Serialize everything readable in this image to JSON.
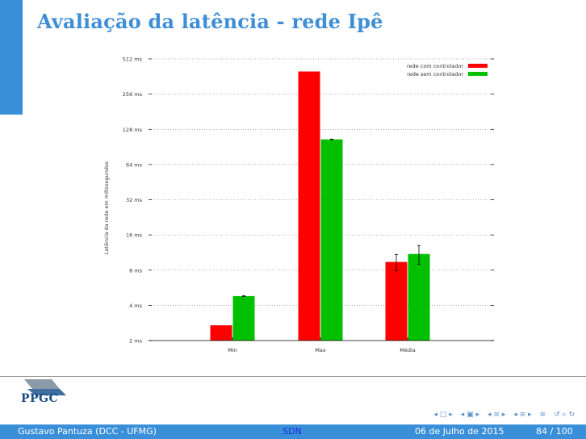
{
  "slide": {
    "title": "Avaliação da latência - rede Ipê"
  },
  "chart_data": {
    "type": "bar",
    "title": "",
    "xlabel": "",
    "ylabel": "Latência da rede em milissegundos",
    "y_scale": "log2",
    "ylim": [
      2,
      512
    ],
    "yticks": [
      2,
      4,
      8,
      16,
      32,
      64,
      128,
      256,
      512
    ],
    "yticklabels": [
      "2 ms",
      "4 ms",
      "8 ms",
      "16 ms",
      "32 ms",
      "64 ms",
      "128 ms",
      "256 ms",
      "512 ms"
    ],
    "categories": [
      "Min",
      "Max",
      "Média"
    ],
    "grid": "horizontal dotted",
    "legend_position": "top-right",
    "series": [
      {
        "name": "rede com controlador",
        "color": "#ff0000",
        "values": [
          2.7,
          400,
          9.4
        ],
        "error": [
          0,
          0,
          1.5
        ]
      },
      {
        "name": "rede sem controlador",
        "color": "#00c000",
        "values": [
          4.8,
          105,
          11
        ],
        "error": [
          0.05,
          0.6,
          2
        ]
      }
    ]
  },
  "footer": {
    "author": "Gustavo Pantuza (DCC - UFMG)",
    "short_title": "SDN",
    "date": "06 de Julho de 2015",
    "page": "84 / 100"
  },
  "logo": {
    "text": "PPGC"
  },
  "nav": {
    "frame": "◂ □ ▸",
    "subsection": "◂ ▣ ▸",
    "section": "◂ ≡ ▸",
    "outline": "◂ ≡ ▸",
    "menu": "≡",
    "search": "↺ ⌕ ↻"
  }
}
